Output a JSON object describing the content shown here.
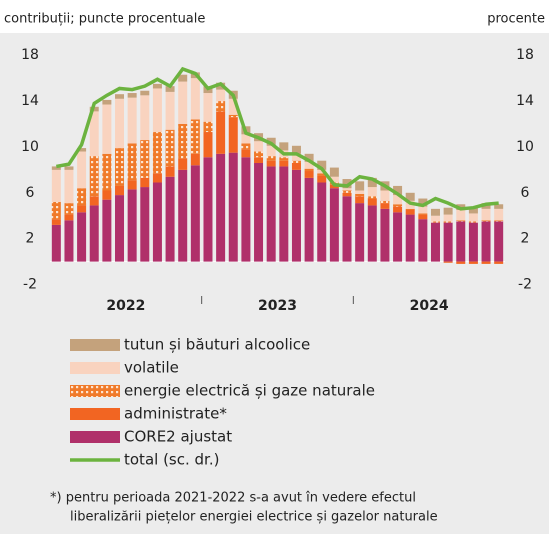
{
  "chart_data": {
    "type": "bar",
    "stacked": true,
    "subtitle": "contribuții; puncte procentuale",
    "y2_label": "procente",
    "categories": [
      null,
      null,
      null,
      null,
      null,
      null,
      null,
      null,
      null,
      null,
      null,
      null,
      null,
      null,
      null,
      null,
      null,
      null,
      null,
      null,
      null,
      null,
      null,
      null,
      null,
      null,
      null,
      null,
      null,
      null,
      null,
      null,
      null,
      null,
      null,
      null
    ],
    "x_groups": [
      "2022",
      "2023",
      "2024"
    ],
    "ylim": [
      -3,
      19.5
    ],
    "yticks": [
      18,
      14,
      10,
      6,
      2,
      -2
    ],
    "y2lim": [
      -3,
      19.5
    ],
    "y2ticks": [
      18,
      14,
      10,
      6,
      2,
      -2
    ],
    "series": [
      {
        "name": "tutun și băuturi alcoolice",
        "color": "#c4a27c",
        "values": [
          0.3,
          0.3,
          0.3,
          0.4,
          0.4,
          0.4,
          0.4,
          0.4,
          0.4,
          0.5,
          0.6,
          0.5,
          0.6,
          0.6,
          0.7,
          0.7,
          0.7,
          0.7,
          0.7,
          0.7,
          0.7,
          0.8,
          0.8,
          0.8,
          0.8,
          0.8,
          0.8,
          0.8,
          0.7,
          0.7,
          0.6,
          0.6,
          0.5,
          0.5,
          0.5,
          0.4
        ]
      },
      {
        "name": "volatile",
        "color": "#f9d3bf",
        "values": [
          2.8,
          2.9,
          3.2,
          3.9,
          4.3,
          4.3,
          4.0,
          3.9,
          3.8,
          3.3,
          3.7,
          3.6,
          2.5,
          1.0,
          1.4,
          0.8,
          0.9,
          0.9,
          0.6,
          0.6,
          0.6,
          0.3,
          0.5,
          0.2,
          0.3,
          0.8,
          0.9,
          0.8,
          0.7,
          0.6,
          0.5,
          0.6,
          0.9,
          0.7,
          1.0,
          1.0
        ]
      },
      {
        "name": "energie electrică și gaze naturale",
        "color": "#f07a2a",
        "pattern": "dots",
        "values": [
          1.5,
          1.0,
          1.5,
          3.5,
          3.2,
          3.3,
          3.2,
          3.3,
          3.6,
          3.2,
          3.0,
          3.0,
          0.9,
          0.9,
          0.2,
          0.5,
          0.5,
          0.4,
          0.3,
          0.2,
          0.2,
          0.2,
          0.2,
          0.2,
          0.2,
          0.2,
          0.2,
          0.2,
          0.1,
          0.1,
          0.1,
          0.1,
          0.1,
          0.1,
          0.1,
          0.1
        ]
      },
      {
        "name": "administrate*",
        "color": "#f26522",
        "values": [
          0.5,
          0.5,
          0.6,
          0.8,
          0.8,
          0.8,
          0.8,
          0.8,
          0.8,
          0.9,
          1.0,
          1.0,
          2.2,
          3.7,
          3.1,
          0.7,
          0.5,
          0.5,
          0.5,
          0.6,
          0.6,
          0.6,
          0.3,
          0.3,
          0.6,
          0.6,
          0.5,
          0.5,
          0.4,
          0.4,
          0.0,
          -0.1,
          -0.2,
          -0.2,
          -0.2,
          -0.2
        ]
      },
      {
        "name": "CORE2 ajustat",
        "color": "#b0306a",
        "values": [
          3.2,
          3.6,
          4.3,
          4.9,
          5.4,
          5.8,
          6.3,
          6.5,
          6.9,
          7.4,
          8.0,
          8.4,
          9.1,
          9.4,
          9.5,
          9.1,
          8.6,
          8.3,
          8.3,
          8.0,
          7.3,
          6.9,
          6.4,
          5.7,
          5.1,
          4.9,
          4.6,
          4.3,
          4.1,
          3.7,
          3.4,
          3.4,
          3.5,
          3.4,
          3.5,
          3.5
        ]
      },
      {
        "name": "total (sc. dr.)",
        "color": "#6cb33f",
        "type": "line",
        "axis": "y2",
        "values": [
          8.3,
          8.5,
          10.2,
          13.8,
          14.5,
          15.1,
          15.0,
          15.3,
          15.9,
          15.3,
          16.8,
          16.4,
          15.1,
          15.5,
          14.5,
          11.2,
          10.8,
          10.3,
          9.4,
          9.4,
          8.8,
          8.1,
          6.7,
          6.6,
          7.4,
          7.2,
          6.6,
          5.9,
          5.1,
          4.9,
          5.5,
          5.1,
          4.6,
          4.7,
          5.0,
          5.1
        ]
      }
    ],
    "footnote": [
      "*) pentru perioada 2021-2022 s-a avut în vedere efectul",
      "liberalizării piețelor energiei electrice și gazelor naturale"
    ]
  }
}
